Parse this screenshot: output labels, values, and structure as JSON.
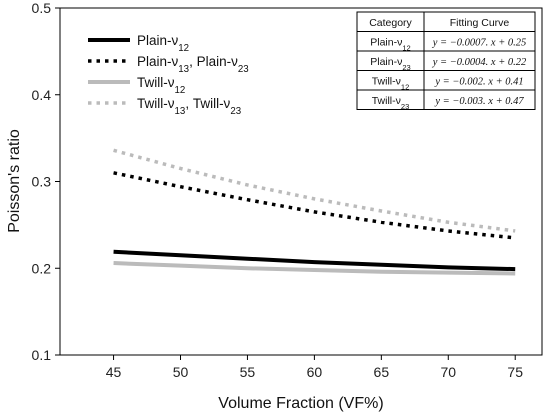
{
  "chart_data": {
    "type": "line",
    "xlabel": "Volume Fraction (VF%)",
    "ylabel": "Poisson's ratio",
    "xlim": [
      41,
      77
    ],
    "ylim": [
      0.1,
      0.5
    ],
    "xticks": [
      "45",
      "50",
      "55",
      "60",
      "65",
      "70",
      "75"
    ],
    "yticks": [
      "0.1",
      "0.2",
      "0.3",
      "0.4",
      "0.5"
    ],
    "x": [
      45,
      50,
      55,
      60,
      65,
      70,
      75
    ],
    "series": [
      {
        "name": "Plain-ν12",
        "name_base": "Plain-ν",
        "name_sub": "12",
        "color": "#000000",
        "style": "solid",
        "values": [
          0.219,
          0.215,
          0.211,
          0.207,
          0.204,
          0.201,
          0.199
        ]
      },
      {
        "name": "Plain-ν13, Plain-ν23",
        "name_base": "Plain-ν",
        "name_sub": "13",
        "name_mid": ", Plain-ν",
        "name_sub2": "23",
        "color": "#000000",
        "style": "dotted",
        "values": [
          0.31,
          0.294,
          0.279,
          0.265,
          0.253,
          0.243,
          0.235
        ]
      },
      {
        "name": "Twill-ν12",
        "name_base": "Twill-ν",
        "name_sub": "12",
        "color": "#bbbbbb",
        "style": "solid",
        "values": [
          0.206,
          0.203,
          0.2,
          0.198,
          0.196,
          0.195,
          0.194
        ]
      },
      {
        "name": "Twill-ν13, Twill-ν23",
        "name_base": "Twill-ν",
        "name_sub": "13",
        "name_mid": ", Twill-ν",
        "name_sub2": "23",
        "color": "#bbbbbb",
        "style": "dotted",
        "values": [
          0.336,
          0.315,
          0.296,
          0.28,
          0.266,
          0.253,
          0.243
        ]
      }
    ],
    "legend": "top-left",
    "grid": false,
    "table": {
      "headers": [
        "Category",
        "Fitting Curve"
      ],
      "rows": [
        {
          "category_base": "Plain-ν",
          "category_sub": "12",
          "curve": "y = −0.0007. x + 0.25"
        },
        {
          "category_base": "Plain-ν",
          "category_sub": "23",
          "curve": "y = −0.0004. x + 0.22"
        },
        {
          "category_base": "Twill-ν",
          "category_sub": "12",
          "curve": "y = −0.002. x + 0.41"
        },
        {
          "category_base": "Twill-ν",
          "category_sub": "23",
          "curve": "y = −0.003. x + 0.47"
        }
      ]
    }
  }
}
